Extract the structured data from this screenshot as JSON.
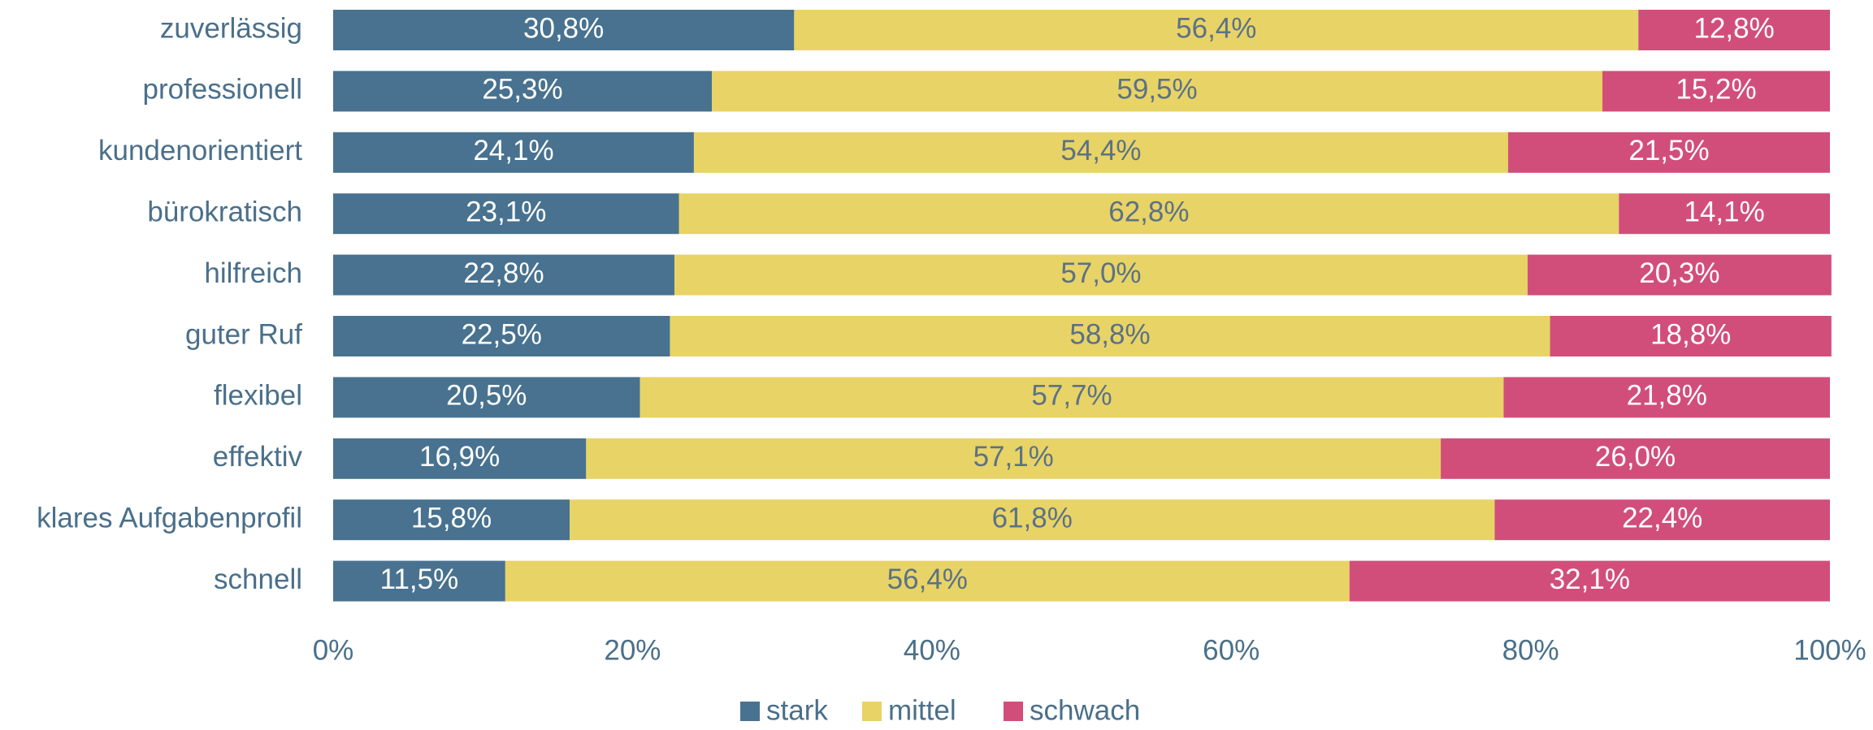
{
  "chart_data": {
    "type": "stacked_barh",
    "categories": [
      "zuverlässig",
      "professionell",
      "kundenorientiert",
      "bürokratisch",
      "hilfreich",
      "guter Ruf",
      "flexibel",
      "effektiv",
      "klares Aufgabenprofil",
      "schnell"
    ],
    "series": [
      {
        "name": "stark",
        "color": "#48728f",
        "label_color": "#ffffff",
        "values": [
          30.8,
          25.3,
          24.1,
          23.1,
          22.8,
          22.5,
          20.5,
          16.9,
          15.8,
          11.5
        ],
        "value_labels": [
          "30,8%",
          "25,3%",
          "24,1%",
          "23,1%",
          "22,8%",
          "22,5%",
          "20,5%",
          "16,9%",
          "15,8%",
          "11,5%"
        ]
      },
      {
        "name": "mittel",
        "color": "#e8d366",
        "label_color": "#5b7186",
        "values": [
          56.4,
          59.5,
          54.4,
          62.8,
          57.0,
          58.8,
          57.7,
          57.1,
          61.8,
          56.4
        ],
        "value_labels": [
          "56,4%",
          "59,5%",
          "54,4%",
          "62,8%",
          "57,0%",
          "58,8%",
          "57,7%",
          "57,1%",
          "61,8%",
          "56,4%"
        ]
      },
      {
        "name": "schwach",
        "color": "#d24e7a",
        "label_color": "#ffffff",
        "values": [
          12.8,
          15.2,
          21.5,
          14.1,
          20.3,
          18.8,
          21.8,
          26.0,
          22.4,
          32.1
        ],
        "value_labels": [
          "12,8%",
          "15,2%",
          "21,5%",
          "14,1%",
          "20,3%",
          "18,8%",
          "21,8%",
          "26,0%",
          "22,4%",
          "32,1%"
        ]
      }
    ],
    "xlim": [
      0,
      100
    ],
    "xticks": [
      {
        "value": 0,
        "label": "0%"
      },
      {
        "value": 20,
        "label": "20%"
      },
      {
        "value": 40,
        "label": "40%"
      },
      {
        "value": 60,
        "label": "60%"
      },
      {
        "value": 80,
        "label": "80%"
      },
      {
        "value": 100,
        "label": "100%"
      }
    ],
    "legend": "bottom"
  }
}
